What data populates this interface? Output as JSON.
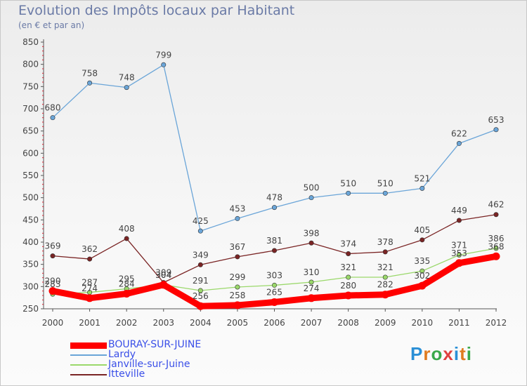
{
  "title": "Evolution des Impôts locaux par Habitant",
  "subtitle": "(en € et par an)",
  "logo": {
    "text": "Proxiti",
    "letter_colors": [
      "#2a8fd6",
      "#e07b1f",
      "#3aa84a",
      "#e04040",
      "#2a8fd6",
      "#e07b1f",
      "#3aa84a"
    ]
  },
  "chart_data": {
    "type": "line",
    "title": "Evolution des Impôts locaux par Habitant",
    "subtitle": "(en € et par an)",
    "xlabel": "",
    "ylabel": "",
    "x": [
      "2000",
      "2001",
      "2002",
      "2003",
      "2004",
      "2005",
      "2006",
      "2007",
      "2008",
      "2009",
      "2010",
      "2011",
      "2012"
    ],
    "ylim": [
      250,
      850
    ],
    "yticks": [
      250,
      300,
      350,
      400,
      450,
      500,
      550,
      600,
      650,
      700,
      750,
      800,
      850
    ],
    "grid": false,
    "legend_position": "bottom-left",
    "series": [
      {
        "name": "BOURAY-SUR-JUINE",
        "color": "#ff0000",
        "values": [
          290,
          274,
          284,
          304,
          256,
          258,
          265,
          274,
          280,
          282,
          302,
          353,
          368
        ]
      },
      {
        "name": "Lardy",
        "color": "#6aa5d8",
        "values": [
          680,
          758,
          748,
          799,
          425,
          453,
          478,
          500,
          510,
          510,
          521,
          622,
          653
        ]
      },
      {
        "name": "Janville-sur-Juine",
        "color": "#9ad86a",
        "values": [
          283,
          287,
          295,
          304,
          291,
          299,
          303,
          310,
          321,
          321,
          335,
          371,
          386
        ]
      },
      {
        "name": "Itteville",
        "color": "#7a2424",
        "values": [
          369,
          362,
          408,
          309,
          349,
          367,
          381,
          398,
          374,
          378,
          405,
          449,
          462
        ]
      }
    ]
  }
}
